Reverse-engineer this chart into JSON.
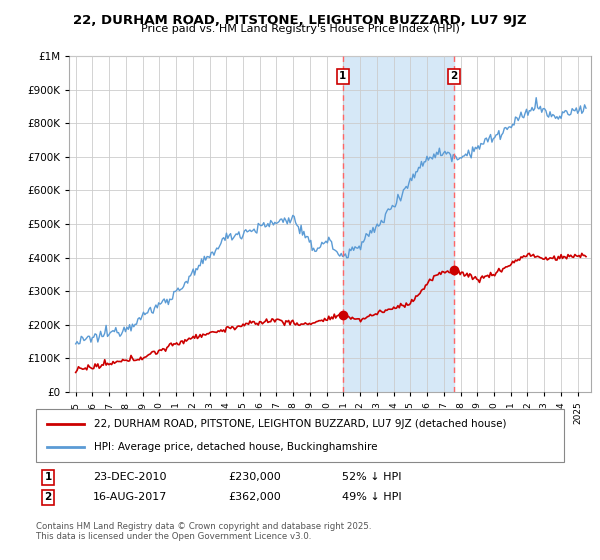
{
  "title": "22, DURHAM ROAD, PITSTONE, LEIGHTON BUZZARD, LU7 9JZ",
  "subtitle": "Price paid vs. HM Land Registry's House Price Index (HPI)",
  "hpi_label": "HPI: Average price, detached house, Buckinghamshire",
  "property_label": "22, DURHAM ROAD, PITSTONE, LEIGHTON BUZZARD, LU7 9JZ (detached house)",
  "hpi_color": "#5b9bd5",
  "hpi_fill_color": "#d6e8f7",
  "property_color": "#cc0000",
  "dashed_line_color": "#ff6666",
  "annotation1": {
    "label": "1",
    "date": "23-DEC-2010",
    "price": "£230,000",
    "hpi": "52% ↓ HPI",
    "x_year": 2010.97,
    "prop_price": 230000
  },
  "annotation2": {
    "label": "2",
    "date": "16-AUG-2017",
    "price": "£362,000",
    "hpi": "49% ↓ HPI",
    "x_year": 2017.62,
    "prop_price": 362000
  },
  "ylim": [
    0,
    1000000
  ],
  "xlim_start": 1994.6,
  "xlim_end": 2025.8,
  "footnote": "Contains HM Land Registry data © Crown copyright and database right 2025.\nThis data is licensed under the Open Government Licence v3.0.",
  "background_color": "#ffffff",
  "plot_bg_color": "#ffffff"
}
